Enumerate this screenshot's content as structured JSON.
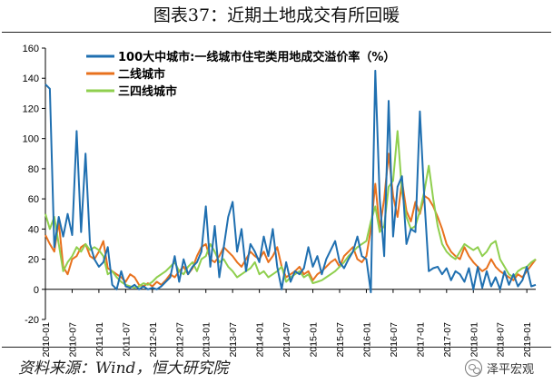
{
  "title": "图表37：近期土地成交有所回暖",
  "source": "资料来源：Wind，恒大研究院",
  "watermark": "泽平宏观",
  "watermark_icon": "wechat-icon",
  "chart_data": {
    "type": "line",
    "ylim": [
      -20,
      160
    ],
    "yticks": [
      -20,
      0,
      20,
      40,
      60,
      80,
      100,
      120,
      140,
      160
    ],
    "xlim": [
      "2010-01",
      "2019-03"
    ],
    "xticks": [
      "2010-01",
      "2010-07",
      "2011-01",
      "2011-07",
      "2012-01",
      "2012-07",
      "2013-01",
      "2013-07",
      "2014-01",
      "2014-07",
      "2015-01",
      "2015-07",
      "2016-01",
      "2016-07",
      "2017-01",
      "2017-07",
      "2018-01",
      "2018-07",
      "2019-01"
    ],
    "grid": false,
    "legend": "top-left",
    "series": [
      {
        "name": "100大中城市:一线城市住宅类用地成交溢价率（%）",
        "color": "#1f6fb0",
        "x": [
          "2010-01",
          "2010-02",
          "2010-03",
          "2010-04",
          "2010-05",
          "2010-06",
          "2010-07",
          "2010-08",
          "2010-09",
          "2010-10",
          "2010-11",
          "2010-12",
          "2011-01",
          "2011-02",
          "2011-03",
          "2011-04",
          "2011-05",
          "2011-06",
          "2011-07",
          "2011-08",
          "2011-09",
          "2011-10",
          "2011-11",
          "2011-12",
          "2012-01",
          "2012-02",
          "2012-03",
          "2012-04",
          "2012-05",
          "2012-06",
          "2012-07",
          "2012-08",
          "2012-09",
          "2012-10",
          "2012-11",
          "2012-12",
          "2013-01",
          "2013-02",
          "2013-03",
          "2013-04",
          "2013-05",
          "2013-06",
          "2013-07",
          "2013-08",
          "2013-09",
          "2013-10",
          "2013-11",
          "2013-12",
          "2014-01",
          "2014-02",
          "2014-03",
          "2014-04",
          "2014-05",
          "2014-06",
          "2014-07",
          "2014-08",
          "2014-09",
          "2014-10",
          "2014-11",
          "2014-12",
          "2015-01",
          "2015-02",
          "2015-03",
          "2015-04",
          "2015-05",
          "2015-06",
          "2015-07",
          "2015-08",
          "2015-09",
          "2015-10",
          "2015-11",
          "2015-12",
          "2016-01",
          "2016-02",
          "2016-03",
          "2016-04",
          "2016-05",
          "2016-06",
          "2016-07",
          "2016-08",
          "2016-09",
          "2016-10",
          "2016-11",
          "2016-12",
          "2017-01",
          "2017-02",
          "2017-03",
          "2017-04",
          "2017-05",
          "2017-06",
          "2017-07",
          "2017-08",
          "2017-09",
          "2017-10",
          "2017-11",
          "2017-12",
          "2018-01",
          "2018-02",
          "2018-03",
          "2018-04",
          "2018-05",
          "2018-06",
          "2018-07",
          "2018-08",
          "2018-09",
          "2018-10",
          "2018-11",
          "2018-12",
          "2019-01",
          "2019-02",
          "2019-03"
        ],
        "values": [
          136,
          133,
          28,
          48,
          35,
          50,
          36,
          105,
          38,
          90,
          30,
          20,
          15,
          18,
          28,
          3,
          0,
          12,
          2,
          1,
          3,
          0,
          2,
          0,
          1,
          0,
          2,
          5,
          8,
          22,
          5,
          20,
          10,
          15,
          18,
          25,
          55,
          15,
          42,
          8,
          28,
          48,
          58,
          25,
          40,
          12,
          30,
          25,
          18,
          35,
          22,
          40,
          15,
          0,
          18,
          5,
          12,
          10,
          14,
          28,
          15,
          22,
          10,
          20,
          26,
          32,
          18,
          14,
          20,
          25,
          35,
          22,
          20,
          -2,
          145,
          60,
          22,
          125,
          35,
          68,
          75,
          30,
          40,
          38,
          118,
          60,
          12,
          14,
          15,
          10,
          14,
          6,
          12,
          10,
          5,
          14,
          0,
          15,
          1,
          12,
          2,
          8,
          0,
          12,
          3,
          10,
          2,
          6,
          15,
          2,
          3
        ]
      },
      {
        "name": "二线城市",
        "color": "#e8711d",
        "x": [
          "2010-01",
          "2010-02",
          "2010-03",
          "2010-04",
          "2010-05",
          "2010-06",
          "2010-07",
          "2010-08",
          "2010-09",
          "2010-10",
          "2010-11",
          "2010-12",
          "2011-01",
          "2011-02",
          "2011-03",
          "2011-04",
          "2011-05",
          "2011-06",
          "2011-07",
          "2011-08",
          "2011-09",
          "2011-10",
          "2011-11",
          "2011-12",
          "2012-01",
          "2012-02",
          "2012-03",
          "2012-04",
          "2012-05",
          "2012-06",
          "2012-07",
          "2012-08",
          "2012-09",
          "2012-10",
          "2012-11",
          "2012-12",
          "2013-01",
          "2013-02",
          "2013-03",
          "2013-04",
          "2013-05",
          "2013-06",
          "2013-07",
          "2013-08",
          "2013-09",
          "2013-10",
          "2013-11",
          "2013-12",
          "2014-01",
          "2014-02",
          "2014-03",
          "2014-04",
          "2014-05",
          "2014-06",
          "2014-07",
          "2014-08",
          "2014-09",
          "2014-10",
          "2014-11",
          "2014-12",
          "2015-01",
          "2015-02",
          "2015-03",
          "2015-04",
          "2015-05",
          "2015-06",
          "2015-07",
          "2015-08",
          "2015-09",
          "2015-10",
          "2015-11",
          "2015-12",
          "2016-01",
          "2016-02",
          "2016-03",
          "2016-04",
          "2016-05",
          "2016-06",
          "2016-07",
          "2016-08",
          "2016-09",
          "2016-10",
          "2016-11",
          "2016-12",
          "2017-01",
          "2017-02",
          "2017-03",
          "2017-04",
          "2017-05",
          "2017-06",
          "2017-07",
          "2017-08",
          "2017-09",
          "2017-10",
          "2017-11",
          "2017-12",
          "2018-01",
          "2018-02",
          "2018-03",
          "2018-04",
          "2018-05",
          "2018-06",
          "2018-07",
          "2018-08",
          "2018-09",
          "2018-10",
          "2018-11",
          "2018-12",
          "2019-01",
          "2019-02",
          "2019-03"
        ],
        "values": [
          36,
          30,
          25,
          45,
          15,
          10,
          20,
          22,
          28,
          30,
          22,
          20,
          25,
          32,
          14,
          12,
          10,
          8,
          5,
          10,
          8,
          3,
          2,
          4,
          2,
          5,
          3,
          6,
          10,
          8,
          12,
          15,
          10,
          14,
          22,
          28,
          30,
          20,
          18,
          22,
          28,
          25,
          22,
          18,
          15,
          20,
          25,
          22,
          20,
          25,
          18,
          22,
          28,
          15,
          8,
          10,
          12,
          15,
          10,
          12,
          6,
          10,
          12,
          15,
          18,
          20,
          15,
          22,
          25,
          28,
          20,
          18,
          22,
          40,
          70,
          40,
          60,
          90,
          62,
          48,
          72,
          52,
          45,
          58,
          50,
          62,
          60,
          55,
          48,
          40,
          30,
          25,
          22,
          20,
          28,
          22,
          18,
          15,
          12,
          14,
          20,
          15,
          12,
          10,
          8,
          6,
          10,
          8,
          12,
          16,
          20
        ]
      },
      {
        "name": "三四线城市",
        "color": "#8fcf4e",
        "x": [
          "2010-01",
          "2010-02",
          "2010-03",
          "2010-04",
          "2010-05",
          "2010-06",
          "2010-07",
          "2010-08",
          "2010-09",
          "2010-10",
          "2010-11",
          "2010-12",
          "2011-01",
          "2011-02",
          "2011-03",
          "2011-04",
          "2011-05",
          "2011-06",
          "2011-07",
          "2011-08",
          "2011-09",
          "2011-10",
          "2011-11",
          "2011-12",
          "2012-01",
          "2012-02",
          "2012-03",
          "2012-04",
          "2012-05",
          "2012-06",
          "2012-07",
          "2012-08",
          "2012-09",
          "2012-10",
          "2012-11",
          "2012-12",
          "2013-01",
          "2013-02",
          "2013-03",
          "2013-04",
          "2013-05",
          "2013-06",
          "2013-07",
          "2013-08",
          "2013-09",
          "2013-10",
          "2013-11",
          "2013-12",
          "2014-01",
          "2014-02",
          "2014-03",
          "2014-04",
          "2014-05",
          "2014-06",
          "2014-07",
          "2014-08",
          "2014-09",
          "2014-10",
          "2014-11",
          "2014-12",
          "2015-01",
          "2015-02",
          "2015-03",
          "2015-04",
          "2015-05",
          "2015-06",
          "2015-07",
          "2015-08",
          "2015-09",
          "2015-10",
          "2015-11",
          "2015-12",
          "2016-01",
          "2016-02",
          "2016-03",
          "2016-04",
          "2016-05",
          "2016-06",
          "2016-07",
          "2016-08",
          "2016-09",
          "2016-10",
          "2016-11",
          "2016-12",
          "2017-01",
          "2017-02",
          "2017-03",
          "2017-04",
          "2017-05",
          "2017-06",
          "2017-07",
          "2017-08",
          "2017-09",
          "2017-10",
          "2017-11",
          "2017-12",
          "2018-01",
          "2018-02",
          "2018-03",
          "2018-04",
          "2018-05",
          "2018-06",
          "2018-07",
          "2018-08",
          "2018-09",
          "2018-10",
          "2018-11",
          "2018-12",
          "2019-01",
          "2019-02",
          "2019-03"
        ],
        "values": [
          50,
          40,
          48,
          30,
          12,
          18,
          22,
          28,
          25,
          30,
          26,
          28,
          26,
          22,
          10,
          12,
          8,
          5,
          3,
          2,
          1,
          2,
          4,
          3,
          5,
          8,
          10,
          12,
          15,
          18,
          12,
          10,
          15,
          18,
          12,
          20,
          22,
          30,
          25,
          18,
          20,
          15,
          12,
          8,
          10,
          12,
          14,
          18,
          10,
          12,
          8,
          10,
          12,
          15,
          5,
          8,
          10,
          12,
          8,
          10,
          4,
          5,
          6,
          8,
          10,
          12,
          15,
          18,
          22,
          25,
          28,
          30,
          32,
          45,
          55,
          38,
          42,
          68,
          72,
          105,
          65,
          48,
          40,
          42,
          52,
          65,
          82,
          60,
          42,
          30,
          25,
          22,
          20,
          25,
          30,
          28,
          26,
          28,
          22,
          25,
          30,
          32,
          20,
          15,
          10,
          8,
          12,
          14,
          15,
          18,
          20
        ]
      }
    ]
  }
}
